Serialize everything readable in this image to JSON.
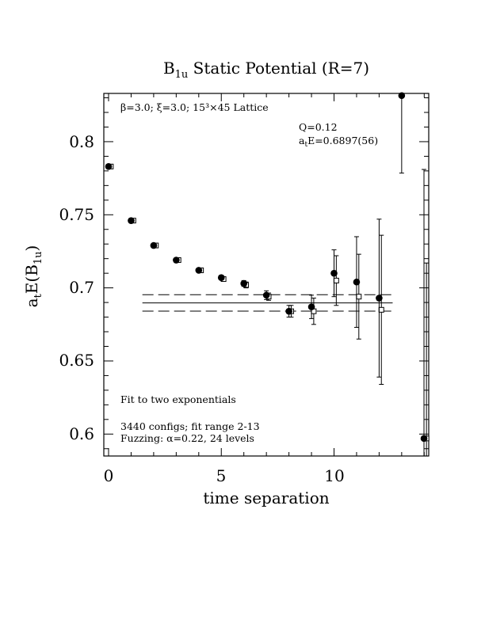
{
  "chart_data": {
    "type": "scatter",
    "title": "B",
    "title_sub": "1u",
    "title_rest": " Static Potential (R=7)",
    "xlabel": "time separation",
    "ylabel": {
      "a": "a",
      "t": "t",
      "mid": "E(B",
      "sub": "1u",
      "end": ")"
    },
    "xlim": [
      0,
      14
    ],
    "ylim": [
      0.585,
      0.833
    ],
    "xticks": [
      0,
      5,
      10
    ],
    "xtick_labels": [
      "0",
      "5",
      "10"
    ],
    "yticks": [
      0.6,
      0.65,
      0.7,
      0.75,
      0.8
    ],
    "ytick_labels": [
      "0.6",
      "0.65",
      "0.7",
      "0.75",
      "0.8"
    ],
    "annotations": {
      "lattice": "β=3.0; ξ=3.0; 15³×45 Lattice",
      "q": "Q=0.12",
      "fit_a": "a",
      "fit_t": "t",
      "fit_rest": "E=0.6897(56)",
      "fit_type": "Fit to two exponentials",
      "configs": "3440 configs; fit range 2-13",
      "fuzzing": "Fuzzing: α=0.22, 24 levels"
    },
    "series": [
      {
        "marker": "filled-circle",
        "points": [
          {
            "x": 0,
            "y": 0.783,
            "err": 0.001
          },
          {
            "x": 1,
            "y": 0.746,
            "err": 0.001
          },
          {
            "x": 2,
            "y": 0.729,
            "err": 0.001
          },
          {
            "x": 3,
            "y": 0.719,
            "err": 0.001
          },
          {
            "x": 4,
            "y": 0.712,
            "err": 0.001
          },
          {
            "x": 5,
            "y": 0.707,
            "err": 0.0015
          },
          {
            "x": 6,
            "y": 0.703,
            "err": 0.002
          },
          {
            "x": 7,
            "y": 0.695,
            "err": 0.003
          },
          {
            "x": 8,
            "y": 0.684,
            "err": 0.004
          },
          {
            "x": 9,
            "y": 0.687,
            "err": 0.008
          },
          {
            "x": 10,
            "y": 0.71,
            "err": 0.016
          },
          {
            "x": 11,
            "y": 0.704,
            "err": 0.031
          },
          {
            "x": 12,
            "y": 0.693,
            "err": 0.054
          },
          {
            "x": 13,
            "y": 0.8315,
            "err": 0.053
          },
          {
            "x": 14,
            "y": 0.597,
            "err": 0.184
          }
        ]
      },
      {
        "marker": "open-square",
        "points": [
          {
            "x": 0.1,
            "y": 0.783,
            "err": 0.0012
          },
          {
            "x": 1.1,
            "y": 0.746,
            "err": 0.001
          },
          {
            "x": 2.1,
            "y": 0.729,
            "err": 0.001
          },
          {
            "x": 3.1,
            "y": 0.719,
            "err": 0.001
          },
          {
            "x": 4.1,
            "y": 0.712,
            "err": 0.001
          },
          {
            "x": 5.1,
            "y": 0.706,
            "err": 0.0015
          },
          {
            "x": 6.1,
            "y": 0.702,
            "err": 0.002
          },
          {
            "x": 7.1,
            "y": 0.694,
            "err": 0.0025
          },
          {
            "x": 8.1,
            "y": 0.684,
            "err": 0.004
          },
          {
            "x": 9.1,
            "y": 0.684,
            "err": 0.009
          },
          {
            "x": 10.1,
            "y": 0.705,
            "err": 0.017
          },
          {
            "x": 11.1,
            "y": 0.694,
            "err": 0.029
          },
          {
            "x": 12.1,
            "y": 0.685,
            "err": 0.051
          },
          {
            "x": 14.1,
            "y": 0.597,
            "err": 0.12
          }
        ]
      }
    ],
    "fit": {
      "value": 0.6897,
      "error": 0.0056,
      "x_range": [
        1.5,
        12.6
      ]
    }
  }
}
